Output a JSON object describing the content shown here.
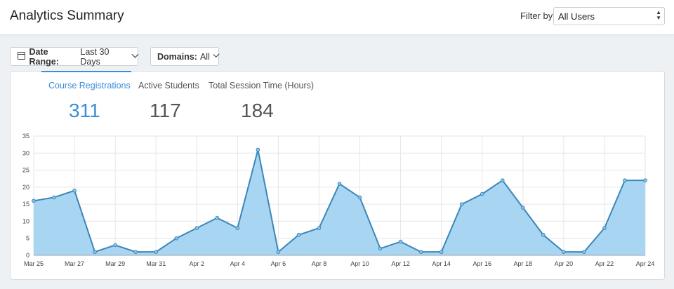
{
  "header": {
    "title": "Analytics Summary",
    "filter_label": "Filter by:",
    "filter_value": "All Users"
  },
  "toolbar": {
    "date_range_label": "Date Range:",
    "date_range_value": "Last 30 Days",
    "domains_label": "Domains:",
    "domains_value": "All"
  },
  "tabs": [
    {
      "label": "Course Registrations",
      "value": "311",
      "active": true
    },
    {
      "label": "Active Students",
      "value": "117",
      "active": false
    },
    {
      "label": "Total Session Time (Hours)",
      "value": "184",
      "active": false
    }
  ],
  "colors": {
    "accent": "#3a8ed8",
    "line": "#3c86b8",
    "fill": "#a8d6f2"
  },
  "chart_data": {
    "type": "area",
    "title": "",
    "xlabel": "",
    "ylabel": "",
    "ylim": [
      0,
      35
    ],
    "yticks": [
      0,
      5,
      10,
      15,
      20,
      25,
      30,
      35
    ],
    "grid": true,
    "x_labels": [
      "Mar 25",
      "Mar 27",
      "Mar 29",
      "Mar 31",
      "Apr 2",
      "Apr 4",
      "Apr 6",
      "Apr 8",
      "Apr 10",
      "Apr 12",
      "Apr 14",
      "Apr 16",
      "Apr 18",
      "Apr 20",
      "Apr 22",
      "Apr 24"
    ],
    "x": [
      "Mar 25",
      "Mar 26",
      "Mar 27",
      "Mar 28",
      "Mar 29",
      "Mar 30",
      "Mar 31",
      "Apr 1",
      "Apr 2",
      "Apr 3",
      "Apr 4",
      "Apr 5",
      "Apr 6",
      "Apr 7",
      "Apr 8",
      "Apr 9",
      "Apr 10",
      "Apr 11",
      "Apr 12",
      "Apr 13",
      "Apr 14",
      "Apr 15",
      "Apr 16",
      "Apr 17",
      "Apr 18",
      "Apr 19",
      "Apr 20",
      "Apr 21",
      "Apr 22",
      "Apr 23",
      "Apr 24"
    ],
    "series": [
      {
        "values": [
          16,
          17,
          19,
          1,
          3,
          1,
          1,
          5,
          8,
          11,
          8,
          31,
          1,
          6,
          8,
          21,
          17,
          2,
          4,
          1,
          1,
          15,
          18,
          22,
          14,
          6,
          1,
          1,
          8,
          22,
          22
        ]
      }
    ]
  }
}
